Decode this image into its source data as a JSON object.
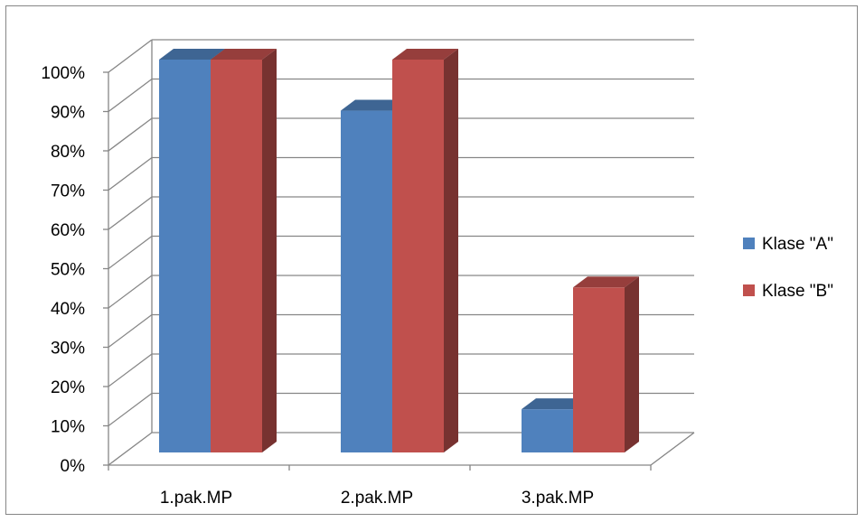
{
  "chart_data": {
    "type": "bar",
    "categories": [
      "1.pak.MP",
      "2.pak.MP",
      "3.pak.MP"
    ],
    "series": [
      {
        "name": "Klase \"A\"",
        "values": [
          100,
          87,
          11
        ],
        "color": "#4F81BD"
      },
      {
        "name": "Klase \"B\"",
        "values": [
          100,
          100,
          42
        ],
        "color": "#C0504D"
      }
    ],
    "yticks": [
      "0%",
      "10%",
      "20%",
      "30%",
      "40%",
      "50%",
      "60%",
      "70%",
      "80%",
      "90%",
      "100%"
    ],
    "ylim": [
      0,
      100
    ],
    "grid": true,
    "legend": "right",
    "style": "3d-clustered-column"
  }
}
